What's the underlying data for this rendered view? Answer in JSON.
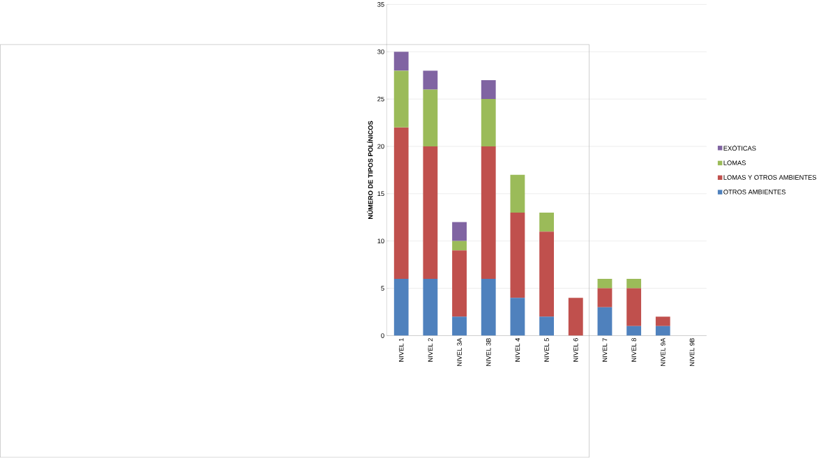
{
  "chart_data": {
    "type": "bar",
    "stacked": true,
    "ylabel": "NÚMERO DE TIPOS POLÍNICOS",
    "categories": [
      "NIVEL 1",
      "NIVEL 2",
      "NIVEL 3A",
      "NIVEL 3B",
      "NIVEL 4",
      "NIVEL 5",
      "NIVEL 6",
      "NIVEL 7",
      "NIVEL 8",
      "NIVEL 9A",
      "NIVEL 9B"
    ],
    "series": [
      {
        "name": "OTROS AMBIENTES",
        "color": "#4f81bd",
        "values": [
          6,
          6,
          2,
          6,
          4,
          2,
          0,
          3,
          1,
          1,
          0
        ]
      },
      {
        "name": "LOMAS Y OTROS AMBIENTES",
        "color": "#c0504d",
        "values": [
          16,
          14,
          7,
          14,
          9,
          9,
          4,
          2,
          4,
          1,
          0
        ]
      },
      {
        "name": "LOMAS",
        "color": "#9bbb59",
        "values": [
          6,
          6,
          1,
          5,
          4,
          2,
          0,
          1,
          1,
          0,
          0
        ]
      },
      {
        "name": "EXÓTICAS",
        "color": "#8064a2",
        "values": [
          2,
          2,
          2,
          2,
          0,
          0,
          0,
          0,
          0,
          0,
          0
        ]
      }
    ],
    "ylim": [
      0,
      35
    ],
    "yticks": [
      0,
      5,
      10,
      15,
      20,
      25,
      30,
      35
    ],
    "grid": "y",
    "legend": "right"
  }
}
